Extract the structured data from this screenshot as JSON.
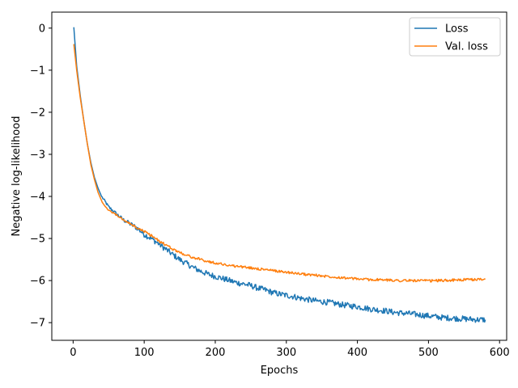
{
  "chart_data": {
    "type": "line",
    "xlabel": "Epochs",
    "ylabel": "Negative log-likelihood",
    "xlim": [
      -30,
      610
    ],
    "ylim": [
      -7.42,
      0.38
    ],
    "xticks": [
      0,
      100,
      200,
      300,
      400,
      500,
      600
    ],
    "yticks": [
      0,
      -1,
      -2,
      -3,
      -4,
      -5,
      -6,
      -7
    ],
    "xtick_labels": [
      "0",
      "100",
      "200",
      "300",
      "400",
      "500",
      "600"
    ],
    "ytick_labels": [
      "0",
      "−1",
      "−2",
      "−3",
      "−4",
      "−5",
      "−6",
      "−7"
    ],
    "grid": false,
    "legend_position": "top-right",
    "series": [
      {
        "name": "Loss",
        "color": "#1f77b4",
        "x": [
          1,
          5,
          10,
          15,
          20,
          25,
          30,
          35,
          40,
          45,
          50,
          60,
          70,
          80,
          90,
          100,
          110,
          120,
          130,
          140,
          150,
          160,
          170,
          180,
          190,
          200,
          210,
          220,
          230,
          240,
          250,
          260,
          270,
          280,
          290,
          300,
          310,
          320,
          330,
          340,
          350,
          360,
          370,
          380,
          390,
          400,
          410,
          420,
          430,
          440,
          450,
          460,
          470,
          480,
          490,
          500,
          510,
          520,
          530,
          540,
          550,
          560,
          570,
          580
        ],
        "y": [
          0.02,
          -0.9,
          -1.6,
          -2.2,
          -2.75,
          -3.2,
          -3.55,
          -3.8,
          -4.0,
          -4.12,
          -4.25,
          -4.4,
          -4.55,
          -4.65,
          -4.75,
          -4.9,
          -5.0,
          -5.12,
          -5.25,
          -5.38,
          -5.5,
          -5.6,
          -5.7,
          -5.78,
          -5.85,
          -5.9,
          -5.95,
          -6.0,
          -6.05,
          -6.08,
          -6.12,
          -6.18,
          -6.22,
          -6.28,
          -6.32,
          -6.35,
          -6.38,
          -6.42,
          -6.45,
          -6.48,
          -6.5,
          -6.52,
          -6.55,
          -6.58,
          -6.6,
          -6.62,
          -6.65,
          -6.68,
          -6.7,
          -6.72,
          -6.75,
          -6.77,
          -6.78,
          -6.8,
          -6.82,
          -6.84,
          -6.86,
          -6.88,
          -6.89,
          -6.9,
          -6.91,
          -6.92,
          -6.93,
          -6.93
        ]
      },
      {
        "name": "Val. loss",
        "color": "#ff7f0e",
        "x": [
          1,
          5,
          10,
          15,
          20,
          25,
          30,
          35,
          40,
          45,
          50,
          60,
          70,
          80,
          90,
          100,
          110,
          120,
          130,
          140,
          150,
          160,
          170,
          180,
          190,
          200,
          210,
          220,
          230,
          240,
          250,
          260,
          270,
          280,
          290,
          300,
          310,
          320,
          330,
          340,
          350,
          360,
          370,
          380,
          390,
          400,
          410,
          420,
          430,
          440,
          450,
          460,
          470,
          480,
          490,
          500,
          510,
          520,
          530,
          540,
          550,
          560,
          570,
          580
        ],
        "y": [
          -0.38,
          -1.0,
          -1.65,
          -2.2,
          -2.75,
          -3.25,
          -3.6,
          -3.9,
          -4.1,
          -4.25,
          -4.33,
          -4.43,
          -4.55,
          -4.65,
          -4.75,
          -4.83,
          -4.93,
          -5.05,
          -5.15,
          -5.25,
          -5.33,
          -5.4,
          -5.46,
          -5.5,
          -5.55,
          -5.58,
          -5.61,
          -5.64,
          -5.66,
          -5.68,
          -5.7,
          -5.72,
          -5.74,
          -5.76,
          -5.78,
          -5.8,
          -5.82,
          -5.84,
          -5.86,
          -5.87,
          -5.89,
          -5.9,
          -5.92,
          -5.93,
          -5.95,
          -5.96,
          -5.97,
          -5.98,
          -5.98,
          -5.99,
          -5.99,
          -6.0,
          -6.0,
          -6.0,
          -6.0,
          -6.01,
          -6.0,
          -6.0,
          -5.99,
          -5.99,
          -5.98,
          -5.98,
          -5.97,
          -5.97
        ]
      }
    ]
  }
}
